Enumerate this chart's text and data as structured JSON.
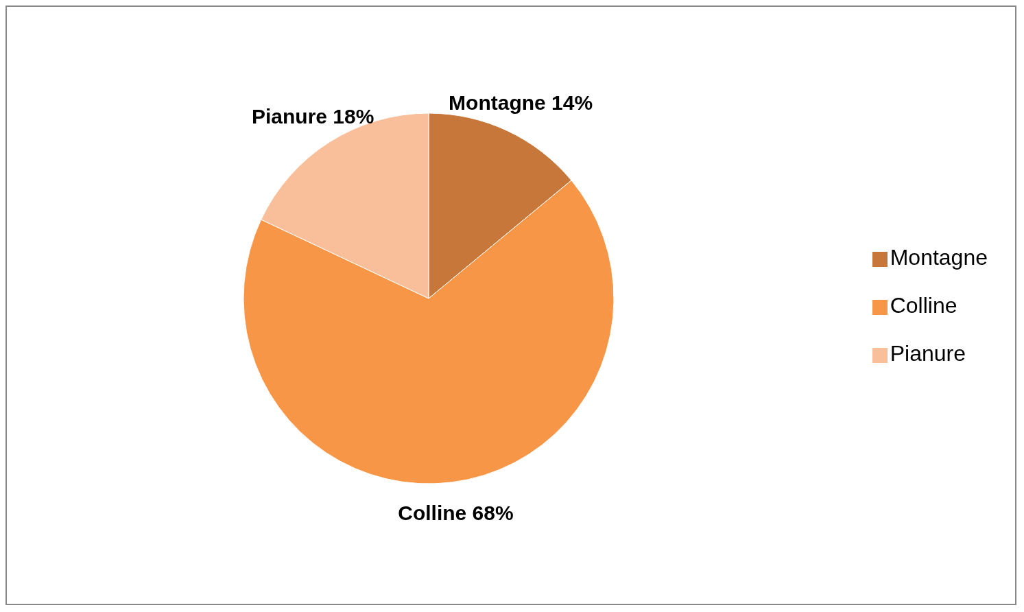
{
  "chart_data": {
    "type": "pie",
    "categories": [
      "Montagne",
      "Colline",
      "Pianure"
    ],
    "values": [
      14,
      68,
      18
    ],
    "colors": [
      "#c8773a",
      "#f79646",
      "#f9bf9a"
    ],
    "value_labels": [
      "Montagne 14%",
      "Colline 68%",
      "Pianure 18%"
    ],
    "legend": "right"
  }
}
